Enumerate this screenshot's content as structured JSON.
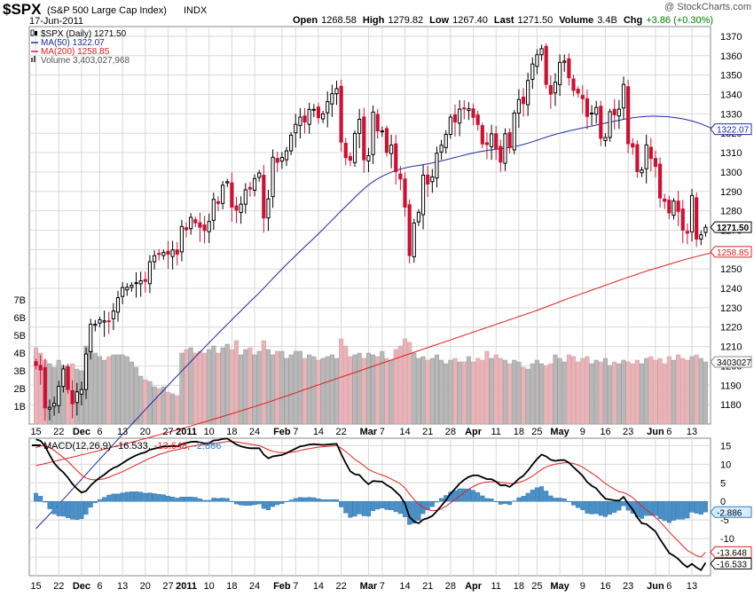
{
  "header": {
    "symbol": "$SPX",
    "name": "(S&P 500 Large Cap Index)",
    "exchange": "INDX",
    "date": "17-Jun-2011",
    "watermark": "@ StockCharts.com",
    "quote": [
      {
        "label": "Open",
        "value": "1268.58"
      },
      {
        "label": "High",
        "value": "1279.82"
      },
      {
        "label": "Low",
        "value": "1267.40"
      },
      {
        "label": "Last",
        "value": "1271.50"
      },
      {
        "label": "Volume",
        "value": "3.4B"
      },
      {
        "label": "Chg",
        "value": "+3.86 (+0.30%)",
        "color": "#008000"
      }
    ]
  },
  "legend": [
    {
      "text": "$SPX (Daily) 1271.50",
      "color": "#000000",
      "icon": "candlestick-icon"
    },
    {
      "text": "MA(50) 1322.07",
      "color": "#1f2a9c",
      "icon": "line-icon"
    },
    {
      "text": "MA(200) 1258.85",
      "color": "#e02020",
      "icon": "line-icon"
    },
    {
      "text": "Volume 3,403,027,968",
      "color": "#555555",
      "icon": "bar-icon"
    }
  ],
  "price_tags": [
    {
      "text": "1322.07",
      "value": 1322.07,
      "bg": "#ffffff",
      "fg": "#1f2a9c",
      "border": "#1f2a9c",
      "bold": false
    },
    {
      "text": "1271.50",
      "value": 1271.5,
      "bg": "#ffffff",
      "fg": "#000000",
      "border": "#000000",
      "bold": true
    },
    {
      "text": "1258.85",
      "value": 1258.85,
      "bg": "#ffffff",
      "fg": "#e02020",
      "border": "#e02020",
      "bold": false
    }
  ],
  "volume_tag": {
    "text": "3403027"
  },
  "macd": {
    "label_prefix": "MACD(12,26,9)",
    "values": [
      {
        "text": "-16.533",
        "color": "#000000"
      },
      {
        "text": "-13.648",
        "color": "#e02020"
      },
      {
        "text": "-2.886",
        "color": "#2a82c8"
      }
    ],
    "tags": [
      {
        "text": "-2.886",
        "value": -2.886,
        "bg": "#d7ecff",
        "fg": "#000000",
        "border": "#2a82c8"
      },
      {
        "text": "-13.648",
        "value": -13.648,
        "bg": "#ffffff",
        "fg": "#000000",
        "border": "#e02020"
      },
      {
        "text": "-16.533",
        "value": -16.533,
        "bg": "#ffffff",
        "fg": "#000000",
        "border": "#000000"
      }
    ]
  },
  "x_labels": [
    {
      "text": "15",
      "idx": 0,
      "bold": false
    },
    {
      "text": "22",
      "idx": 5,
      "bold": false
    },
    {
      "text": "Dec",
      "idx": 10,
      "bold": true
    },
    {
      "text": "6",
      "idx": 14,
      "bold": false
    },
    {
      "text": "13",
      "idx": 19,
      "bold": false
    },
    {
      "text": "20",
      "idx": 24,
      "bold": false
    },
    {
      "text": "27",
      "idx": 29,
      "bold": false
    },
    {
      "text": "2011",
      "idx": 33,
      "bold": true
    },
    {
      "text": "10",
      "idx": 38,
      "bold": false
    },
    {
      "text": "18",
      "idx": 43,
      "bold": false
    },
    {
      "text": "24",
      "idx": 48,
      "bold": false
    },
    {
      "text": "Feb",
      "idx": 54,
      "bold": true
    },
    {
      "text": "7",
      "idx": 57,
      "bold": false
    },
    {
      "text": "14",
      "idx": 62,
      "bold": false
    },
    {
      "text": "22",
      "idx": 67,
      "bold": false
    },
    {
      "text": "Mar",
      "idx": 73,
      "bold": true
    },
    {
      "text": "7",
      "idx": 76,
      "bold": false
    },
    {
      "text": "14",
      "idx": 81,
      "bold": false
    },
    {
      "text": "21",
      "idx": 86,
      "bold": false
    },
    {
      "text": "28",
      "idx": 91,
      "bold": false
    },
    {
      "text": "Apr",
      "idx": 96,
      "bold": true
    },
    {
      "text": "11",
      "idx": 101,
      "bold": false
    },
    {
      "text": "18",
      "idx": 106,
      "bold": false
    },
    {
      "text": "25",
      "idx": 110,
      "bold": false
    },
    {
      "text": "May",
      "idx": 115,
      "bold": true
    },
    {
      "text": "9",
      "idx": 120,
      "bold": false
    },
    {
      "text": "16",
      "idx": 125,
      "bold": false
    },
    {
      "text": "23",
      "idx": 130,
      "bold": false
    },
    {
      "text": "Jun",
      "idx": 136,
      "bold": true
    },
    {
      "text": "6",
      "idx": 139,
      "bold": false
    },
    {
      "text": "13",
      "idx": 144,
      "bold": false
    }
  ],
  "chart_data": {
    "type": "candlestick",
    "title": "$SPX (S&P 500 Large Cap Index) INDX",
    "price_axis": {
      "ylim": [
        1170,
        1375
      ],
      "ticks": [
        1180,
        1190,
        1200,
        1210,
        1220,
        1230,
        1240,
        1250,
        1260,
        1270,
        1280,
        1290,
        1300,
        1310,
        1320,
        1330,
        1340,
        1350,
        1360,
        1370
      ]
    },
    "volume_axis": {
      "ylim": [
        0,
        8
      ],
      "ticks": [
        1,
        2,
        3,
        4,
        5,
        6,
        7
      ],
      "tick_labels": [
        "1B",
        "2B",
        "3B",
        "4B",
        "5B",
        "6B",
        "7B"
      ]
    },
    "macd_axis": {
      "ylim": [
        -20,
        17
      ],
      "ticks": [
        15,
        10,
        5,
        0,
        -5,
        -10,
        -15
      ],
      "tick_labels": [
        "15",
        "10",
        "5",
        "0",
        "-5",
        "-10",
        "-15"
      ]
    },
    "colors": {
      "up": "#000000",
      "down": "#cc1133",
      "ma50": "#1f2a9c",
      "ma200": "#e02020",
      "vol_up": "#b8b8b8",
      "vol_down": "#e8b4b8",
      "macd": "#000000",
      "signal": "#e02020",
      "hist": "#4a90c8",
      "grid": "#d8d8d8"
    },
    "close": [
      1200.2,
      1197.9,
      1178.3,
      1178.6,
      1180.7,
      1189.4,
      1198.4,
      1187.8,
      1180.5,
      1186.6,
      1187.8,
      1206.1,
      1221.5,
      1221.5,
      1223.8,
      1223.2,
      1223.1,
      1228.3,
      1235.2,
      1240.4,
      1240.5,
      1241.6,
      1242.9,
      1243.9,
      1243.6,
      1253.7,
      1256.8,
      1257.5,
      1258.5,
      1257.6,
      1259.8,
      1257.6,
      1271.9,
      1270.2,
      1276.6,
      1273.8,
      1271.5,
      1269.8,
      1274.5,
      1285.9,
      1283.8,
      1293.2,
      1295.0,
      1281.9,
      1280.3,
      1283.4,
      1290.8,
      1291.2,
      1296.6,
      1299.5,
      1276.3,
      1286.1,
      1307.6,
      1305.0,
      1307.5,
      1310.9,
      1319.0,
      1324.6,
      1328.3,
      1325.8,
      1332.3,
      1332.3,
      1328.0,
      1330.0,
      1336.3,
      1340.4,
      1343.0,
      1315.4,
      1307.4,
      1306.1,
      1319.9,
      1327.2,
      1306.3,
      1308.4,
      1330.9,
      1321.2,
      1321.2,
      1310.1,
      1313.9,
      1300.2,
      1296.4,
      1281.9,
      1256.9,
      1273.7,
      1279.2,
      1298.4,
      1293.8,
      1297.5,
      1309.7,
      1313.8,
      1319.4,
      1328.3,
      1325.8,
      1332.4,
      1332.9,
      1332.6,
      1328.2,
      1324.5,
      1314.5,
      1314.2,
      1319.7,
      1312.0,
      1305.1,
      1319.7,
      1312.6,
      1330.4,
      1337.4,
      1335.3,
      1347.2,
      1355.7,
      1360.5,
      1363.6,
      1345.2,
      1340.2,
      1346.3,
      1356.6,
      1357.2,
      1348.6,
      1342.1,
      1340.7,
      1337.8,
      1328.7,
      1330.4,
      1333.3,
      1317.4,
      1317.8,
      1331.1,
      1329.5,
      1332.4,
      1345.2,
      1314.6,
      1312.9,
      1300.2,
      1301.1,
      1314.0,
      1307.0,
      1302.9,
      1286.6,
      1284.9,
      1278.9,
      1285.0,
      1279.7,
      1270.0,
      1268.5,
      1287.9,
      1265.4,
      1267.6,
      1271.5
    ],
    "ma50": [
      1116.0,
      1118.5,
      1121.0,
      1123.5,
      1126.0,
      1128.6,
      1131.2,
      1133.7,
      1136.3,
      1138.9,
      1141.5,
      1144.1,
      1146.7,
      1149.3,
      1151.9,
      1154.4,
      1157.0,
      1159.6,
      1162.1,
      1164.7,
      1167.2,
      1169.8,
      1172.3,
      1174.9,
      1177.4,
      1179.9,
      1182.4,
      1184.9,
      1187.4,
      1189.9,
      1192.4,
      1194.9,
      1197.3,
      1199.8,
      1202.2,
      1204.7,
      1207.1,
      1209.5,
      1211.9,
      1214.3,
      1216.7,
      1219.1,
      1221.4,
      1223.8,
      1226.1,
      1228.4,
      1230.8,
      1233.1,
      1235.4,
      1237.7,
      1240.1,
      1242.6,
      1245.1,
      1247.5,
      1249.9,
      1252.3,
      1254.6,
      1256.9,
      1259.2,
      1261.4,
      1263.6,
      1265.8,
      1268.1,
      1270.4,
      1272.8,
      1275.2,
      1277.6,
      1280.0,
      1282.3,
      1284.6,
      1286.9,
      1289.2,
      1291.3,
      1293.3,
      1295.0,
      1296.5,
      1297.8,
      1298.9,
      1299.9,
      1300.8,
      1301.5,
      1302.1,
      1302.6,
      1303.0,
      1303.4,
      1303.8,
      1304.2,
      1304.7,
      1305.2,
      1305.7,
      1306.3,
      1306.9,
      1307.5,
      1308.1,
      1308.7,
      1309.3,
      1309.8,
      1310.3,
      1310.7,
      1311.1,
      1311.4,
      1311.7,
      1312.0,
      1312.3,
      1312.7,
      1313.1,
      1313.6,
      1314.2,
      1314.9,
      1315.6,
      1316.4,
      1317.2,
      1318.0,
      1318.7,
      1319.4,
      1320.0,
      1320.6,
      1321.2,
      1321.7,
      1322.2,
      1322.7,
      1323.2,
      1323.7,
      1324.2,
      1324.7,
      1325.2,
      1325.7,
      1326.2,
      1326.7,
      1327.2,
      1327.6,
      1328.0,
      1328.3,
      1328.5,
      1328.7,
      1328.8,
      1328.8,
      1328.7,
      1328.6,
      1328.4,
      1328.1,
      1327.8,
      1327.4,
      1326.9,
      1326.3,
      1325.6,
      1324.8,
      1323.9,
      1322.9,
      1322.1
    ],
    "ma200": [
      1148.5,
      1149.1,
      1149.6,
      1150.2,
      1150.7,
      1151.3,
      1151.8,
      1152.4,
      1153.0,
      1153.5,
      1154.1,
      1154.6,
      1155.2,
      1155.8,
      1156.4,
      1157.0,
      1157.6,
      1158.2,
      1158.8,
      1159.4,
      1160.0,
      1160.6,
      1161.2,
      1161.9,
      1162.5,
      1163.1,
      1163.8,
      1164.4,
      1165.1,
      1165.7,
      1166.4,
      1167.0,
      1167.7,
      1168.3,
      1169.0,
      1169.7,
      1170.4,
      1171.1,
      1171.8,
      1172.5,
      1173.2,
      1173.9,
      1174.6,
      1175.3,
      1176.1,
      1176.8,
      1177.5,
      1178.3,
      1179.0,
      1179.8,
      1180.5,
      1181.3,
      1182.1,
      1182.9,
      1183.7,
      1184.5,
      1185.3,
      1186.1,
      1186.9,
      1187.8,
      1188.6,
      1189.4,
      1190.2,
      1191.0,
      1191.8,
      1192.6,
      1193.4,
      1194.2,
      1195.0,
      1195.8,
      1196.6,
      1197.4,
      1198.2,
      1199.0,
      1199.8,
      1200.6,
      1201.4,
      1202.2,
      1203.0,
      1203.8,
      1204.6,
      1205.4,
      1206.2,
      1207.0,
      1207.8,
      1208.6,
      1209.4,
      1210.2,
      1211.0,
      1211.8,
      1212.6,
      1213.4,
      1214.2,
      1215.0,
      1215.8,
      1216.6,
      1217.4,
      1218.2,
      1219.0,
      1219.8,
      1220.6,
      1221.4,
      1222.2,
      1223.0,
      1223.8,
      1224.6,
      1225.4,
      1226.2,
      1227.0,
      1227.8,
      1228.6,
      1229.5,
      1230.4,
      1231.3,
      1232.2,
      1233.1,
      1234.0,
      1234.9,
      1235.7,
      1236.5,
      1237.4,
      1238.2,
      1239.1,
      1239.9,
      1240.7,
      1241.6,
      1242.4,
      1243.2,
      1244.1,
      1244.9,
      1245.7,
      1246.5,
      1247.3,
      1248.1,
      1248.9,
      1249.6,
      1250.3,
      1251.0,
      1251.7,
      1252.4,
      1253.1,
      1253.8,
      1254.5,
      1255.2,
      1255.8,
      1256.4,
      1257.0,
      1257.6,
      1258.2,
      1258.85
    ],
    "volume_billions": [
      4.3,
      4.0,
      3.6,
      3.4,
      3.2,
      3.6,
      3.3,
      3.2,
      3.4,
      3.1,
      3.0,
      4.4,
      4.2,
      4.0,
      3.8,
      3.6,
      3.8,
      3.9,
      3.9,
      3.9,
      3.8,
      3.5,
      3.2,
      2.7,
      2.5,
      2.4,
      2.1,
      2.0,
      2.1,
      1.8,
      1.7,
      1.6,
      4.0,
      4.2,
      4.3,
      4.0,
      4.1,
      4.0,
      4.2,
      4.4,
      4.0,
      4.3,
      4.5,
      4.2,
      4.7,
      3.9,
      4.2,
      4.3,
      3.9,
      4.1,
      4.7,
      4.2,
      3.9,
      4.1,
      4.1,
      3.7,
      3.9,
      4.1,
      4.1,
      3.7,
      3.9,
      3.8,
      3.6,
      3.7,
      3.8,
      3.9,
      3.7,
      4.8,
      4.4,
      3.8,
      3.9,
      4.0,
      3.7,
      4.0,
      3.9,
      3.8,
      4.1,
      3.7,
      3.6,
      4.2,
      4.4,
      4.8,
      4.6,
      4.0,
      3.7,
      3.8,
      3.6,
      3.7,
      3.9,
      3.6,
      3.4,
      3.6,
      3.7,
      3.5,
      3.5,
      3.8,
      3.5,
      3.7,
      3.6,
      4.1,
      3.7,
      3.9,
      3.7,
      3.6,
      3.4,
      3.6,
      3.5,
      3.2,
      3.1,
      3.4,
      3.6,
      3.4,
      3.3,
      3.4,
      3.9,
      3.7,
      3.5,
      3.9,
      3.8,
      3.5,
      3.7,
      3.8,
      3.4,
      3.6,
      3.5,
      3.7,
      3.3,
      3.5,
      3.4,
      3.6,
      3.5,
      3.4,
      3.6,
      3.4,
      3.7,
      3.8,
      3.6,
      3.7,
      3.4,
      3.8,
      3.6,
      3.9,
      3.7,
      3.6,
      3.8,
      3.9,
      3.7,
      3.5,
      3.7,
      3.4
    ],
    "macd_line": [
      16.7,
      16.3,
      14.8,
      12.5,
      10.3,
      8.9,
      7.8,
      6.4,
      4.7,
      3.4,
      2.4,
      2.8,
      4.3,
      5.4,
      6.4,
      7.2,
      8.2,
      9.0,
      9.5,
      10.3,
      11.1,
      11.8,
      12.4,
      12.9,
      13.2,
      13.9,
      14.2,
      14.5,
      14.8,
      14.8,
      14.9,
      14.8,
      15.4,
      15.7,
      16.0,
      16.1,
      15.9,
      15.6,
      15.7,
      16.4,
      16.5,
      16.8,
      16.9,
      16.1,
      15.3,
      14.8,
      14.5,
      14.3,
      14.3,
      14.3,
      12.6,
      11.6,
      12.1,
      12.3,
      12.5,
      13.0,
      13.6,
      14.2,
      14.8,
      15.0,
      15.3,
      15.4,
      15.3,
      15.2,
      15.3,
      15.4,
      15.5,
      12.8,
      10.3,
      8.1,
      7.3,
      7.1,
      5.7,
      4.6,
      5.5,
      5.4,
      5.3,
      4.4,
      3.7,
      2.6,
      1.4,
      -0.6,
      -4.2,
      -5.4,
      -5.9,
      -4.9,
      -4.5,
      -3.9,
      -2.6,
      -1.2,
      0.3,
      2.1,
      3.4,
      4.8,
      5.8,
      6.6,
      7.0,
      7.0,
      6.5,
      6.0,
      6.0,
      5.3,
      4.3,
      4.4,
      3.9,
      4.9,
      6.1,
      6.9,
      8.3,
      9.9,
      11.4,
      12.6,
      12.1,
      11.2,
      10.9,
      11.1,
      11.1,
      10.4,
      9.2,
      8.1,
      6.9,
      5.2,
      4.2,
      3.5,
      2.0,
      0.7,
      0.5,
      0.3,
      0.2,
      1.2,
      -0.6,
      -2.2,
      -4.3,
      -5.9,
      -6.1,
      -7.1,
      -8.1,
      -10.2,
      -12.0,
      -13.9,
      -14.6,
      -15.5,
      -16.8,
      -17.7,
      -16.8,
      -17.8,
      -18.5,
      -16.5
    ],
    "signal_line": [
      14.5,
      14.9,
      15.0,
      14.5,
      13.7,
      12.8,
      11.8,
      10.8,
      9.5,
      8.3,
      7.1,
      6.3,
      5.9,
      5.8,
      5.9,
      6.1,
      6.5,
      7.0,
      7.5,
      8.0,
      8.6,
      9.2,
      9.8,
      10.4,
      11.0,
      11.6,
      12.1,
      12.6,
      13.0,
      13.4,
      13.7,
      13.9,
      14.2,
      14.5,
      14.8,
      15.0,
      15.2,
      15.3,
      15.4,
      15.5,
      15.7,
      15.9,
      16.1,
      16.1,
      16.0,
      15.8,
      15.6,
      15.4,
      15.2,
      15.0,
      14.5,
      13.9,
      13.5,
      13.2,
      13.1,
      13.1,
      13.2,
      13.4,
      13.7,
      14.0,
      14.2,
      14.4,
      14.6,
      14.7,
      14.8,
      14.9,
      15.0,
      14.3,
      13.4,
      12.4,
      11.3,
      10.5,
      9.6,
      8.6,
      8.0,
      7.5,
      7.1,
      6.6,
      6.0,
      5.4,
      4.7,
      3.6,
      2.0,
      0.5,
      -0.8,
      -1.6,
      -2.2,
      -2.5,
      -2.4,
      -2.0,
      -1.3,
      -0.4,
      0.5,
      1.4,
      2.4,
      3.3,
      4.0,
      4.6,
      5.0,
      5.2,
      5.3,
      5.3,
      5.1,
      5.0,
      4.8,
      4.8,
      5.1,
      5.5,
      6.1,
      6.8,
      7.7,
      8.6,
      9.3,
      9.7,
      10.0,
      10.2,
      10.4,
      10.4,
      10.2,
      9.8,
      9.2,
      8.4,
      7.6,
      6.8,
      5.8,
      4.8,
      4.0,
      3.3,
      2.6,
      2.4,
      1.8,
      1.0,
      -0.1,
      -1.3,
      -2.3,
      -3.3,
      -4.3,
      -5.5,
      -6.8,
      -8.2,
      -9.5,
      -10.7,
      -12.0,
      -13.2,
      -13.9,
      -14.6,
      -15.0,
      -13.648
    ]
  }
}
